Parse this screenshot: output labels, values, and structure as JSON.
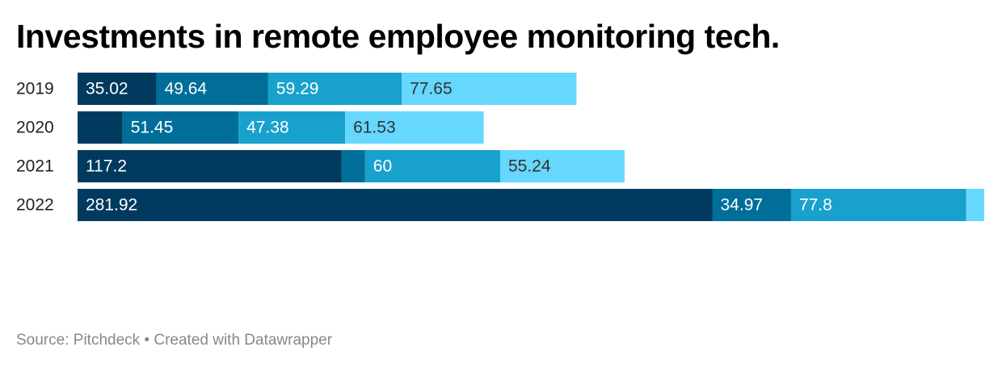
{
  "title": "Investments in remote employee monitoring tech.",
  "footer": {
    "source_label": "Source:",
    "source": "Pitchdeck",
    "separator": "•",
    "credit": "Created with Datawrapper"
  },
  "chart_data": {
    "type": "bar",
    "orientation": "horizontal",
    "stacked": true,
    "title": "Investments in remote employee monitoring tech.",
    "categories": [
      "2019",
      "2020",
      "2021",
      "2022"
    ],
    "series": [
      {
        "color": "#003a5f",
        "values": [
          35.02,
          20,
          117.2,
          281.92
        ]
      },
      {
        "color": "#006e99",
        "values": [
          49.64,
          51.45,
          10.5,
          34.97
        ]
      },
      {
        "color": "#18a1cd",
        "values": [
          59.29,
          47.38,
          60,
          77.8
        ]
      },
      {
        "color": "#66d7fd",
        "values": [
          77.65,
          61.53,
          55.24,
          8
        ]
      }
    ],
    "data_labels": [
      [
        "35.02",
        "49.64",
        "59.29",
        "77.65"
      ],
      [
        "",
        "51.45",
        "47.38",
        "61.53"
      ],
      [
        "117.2",
        "",
        "60",
        "55.24"
      ],
      [
        "281.92",
        "34.97",
        "77.8",
        ""
      ]
    ],
    "label_colors": [
      "#ffffff",
      "#ffffff",
      "#ffffff",
      "#333333"
    ],
    "xlim": [
      0,
      402.69
    ],
    "grid": false,
    "legend": "none"
  }
}
